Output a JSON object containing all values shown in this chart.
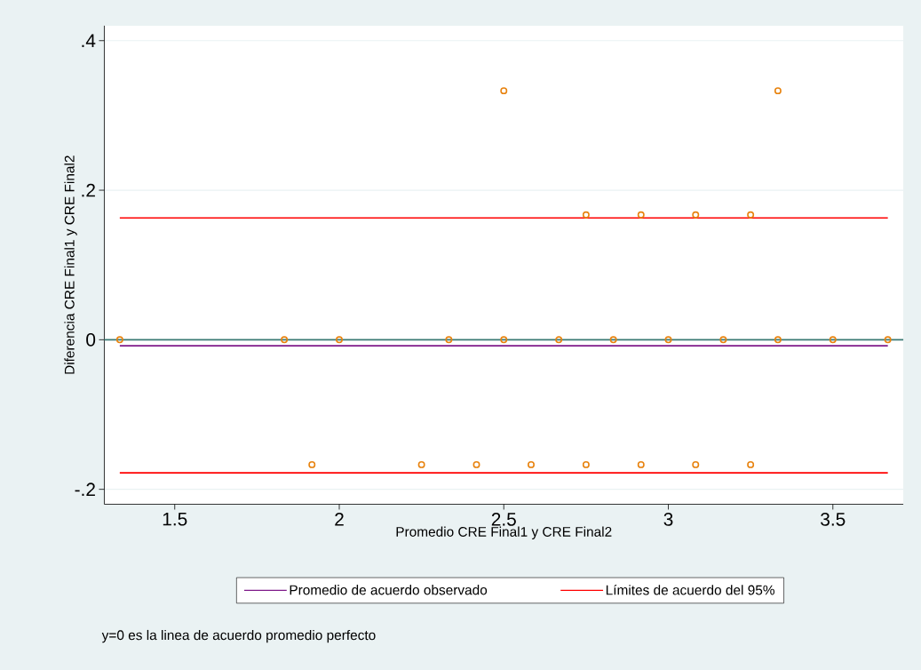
{
  "chart_data": {
    "type": "scatter",
    "xlabel": "Promedio CRE Final1 y CRE Final2",
    "ylabel": "Diferencia CRE Final1 y CRE Final2",
    "xlim": [
      1.286,
      3.714
    ],
    "ylim": [
      -0.22,
      0.42
    ],
    "xticks": [
      1.5,
      2,
      2.5,
      3,
      3.5
    ],
    "yticks": [
      {
        "value": -0.2,
        "label": "-.2"
      },
      0,
      {
        "value": 0.2,
        "label": ".2"
      },
      {
        "value": 0.4,
        "label": ".4"
      }
    ],
    "grid": "y",
    "legend": "bottom",
    "series": [
      {
        "marker": "circle",
        "color": "#e8830f",
        "x": [
          2.5,
          3.333,
          2.75,
          2.917,
          3.083,
          3.25,
          1.333,
          1.833,
          2,
          2.333,
          2.5,
          2.667,
          2.833,
          3,
          3.167,
          3.333,
          3.5,
          3.667,
          1.917,
          2.25,
          2.417,
          2.583,
          2.75,
          2.917,
          3.083,
          3.25
        ],
        "values": [
          0.333,
          0.333,
          0.167,
          0.167,
          0.167,
          0.167,
          0,
          0,
          0,
          0,
          0,
          0,
          0,
          0,
          0,
          0,
          0,
          0,
          -0.167,
          -0.167,
          -0.167,
          -0.167,
          -0.167,
          -0.167,
          -0.167,
          -0.167
        ]
      },
      {
        "type": "line",
        "name": "Promedio de acuerdo observado",
        "color": "#7f1a8a",
        "x": [
          1.333,
          3.667
        ],
        "values": [
          -0.008,
          -0.008
        ]
      },
      {
        "type": "line",
        "name": "Límites de acuerdo del 95%",
        "color": "#ff0000",
        "x": [
          1.333,
          3.667
        ],
        "values": [
          0.163,
          0.163
        ]
      },
      {
        "type": "line",
        "color": "#ff0000",
        "x": [
          1.333,
          3.667
        ],
        "values": [
          -0.178,
          -0.178
        ]
      }
    ],
    "ref_lines": [
      {
        "axis": "y",
        "value": 0,
        "color": "#3a7a74"
      }
    ],
    "annotations": [
      "y=0 es la linea de acuerdo promedio perfecto"
    ]
  }
}
